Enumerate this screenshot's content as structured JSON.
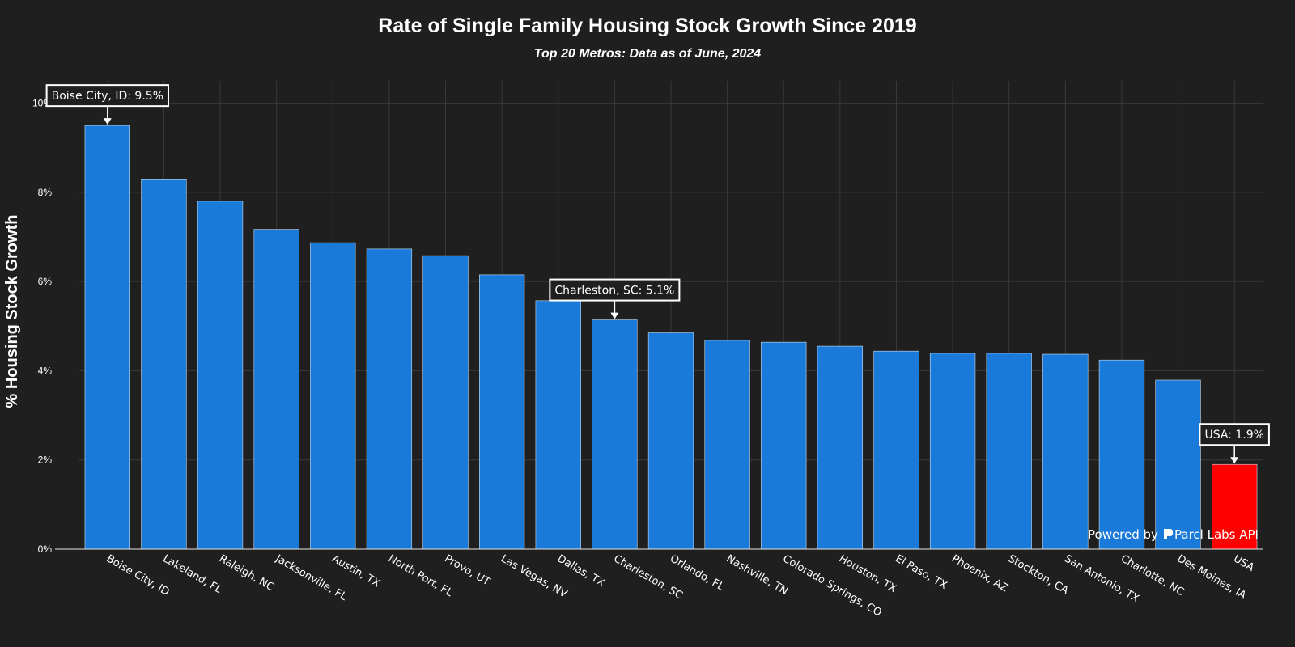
{
  "colors": {
    "background": "#1f1f1f",
    "bar": "#1a7ad9",
    "highlight_bar": "#ff0000",
    "text": "#ffffff",
    "grid": "#3a3a3a"
  },
  "watermark": {
    "prefix": "Powered by",
    "brand": "Parcl Labs API",
    "icon": "parcl-logo-icon"
  },
  "chart_data": {
    "type": "bar",
    "title": "Rate of Single Family Housing Stock Growth Since 2019",
    "subtitle": "Top 20 Metros: Data as of June, 2024",
    "xlabel": "",
    "ylabel": "% Housing Stock Growth",
    "ylim": [
      0,
      10.5
    ],
    "yticks": [
      0,
      2,
      4,
      6,
      8,
      10
    ],
    "ytick_labels": [
      "0%",
      "2%",
      "4%",
      "6%",
      "8%",
      "10%"
    ],
    "grid": true,
    "categories": [
      "Boise City, ID",
      "Lakeland, FL",
      "Raleigh, NC",
      "Jacksonville, FL",
      "Austin, TX",
      "North Port, FL",
      "Provo, UT",
      "Las Vegas, NV",
      "Dallas, TX",
      "Charleston, SC",
      "Orlando, FL",
      "Nashville, TN",
      "Colorado Springs, CO",
      "Houston, TX",
      "El Paso, TX",
      "Phoenix, AZ",
      "Stockton, CA",
      "San Antonio, TX",
      "Charlotte, NC",
      "Des Moines, IA",
      "USA"
    ],
    "values": [
      9.5,
      8.3,
      7.8,
      7.17,
      6.87,
      6.73,
      6.58,
      6.15,
      5.57,
      5.14,
      4.85,
      4.68,
      4.64,
      4.55,
      4.44,
      4.39,
      4.39,
      4.37,
      4.24,
      3.79,
      1.9
    ],
    "highlight_index": 20,
    "annotations": [
      {
        "index": 0,
        "text": "Boise City, ID: 9.5%"
      },
      {
        "index": 9,
        "text": "Charleston, SC: 5.1%"
      },
      {
        "index": 20,
        "text": "USA: 1.9%"
      }
    ]
  }
}
